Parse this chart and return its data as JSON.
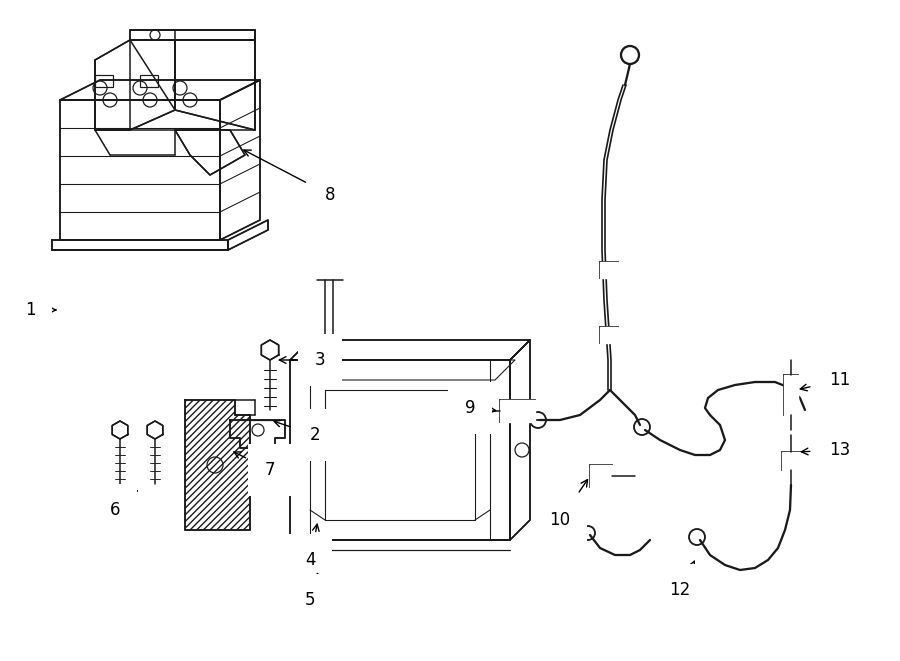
{
  "background_color": "#ffffff",
  "line_color": "#1a1a1a",
  "fig_width": 9.0,
  "fig_height": 6.61,
  "dpi": 100,
  "label_fontsize": 12,
  "arrow_lw": 1.0,
  "parts_lw": 1.1
}
